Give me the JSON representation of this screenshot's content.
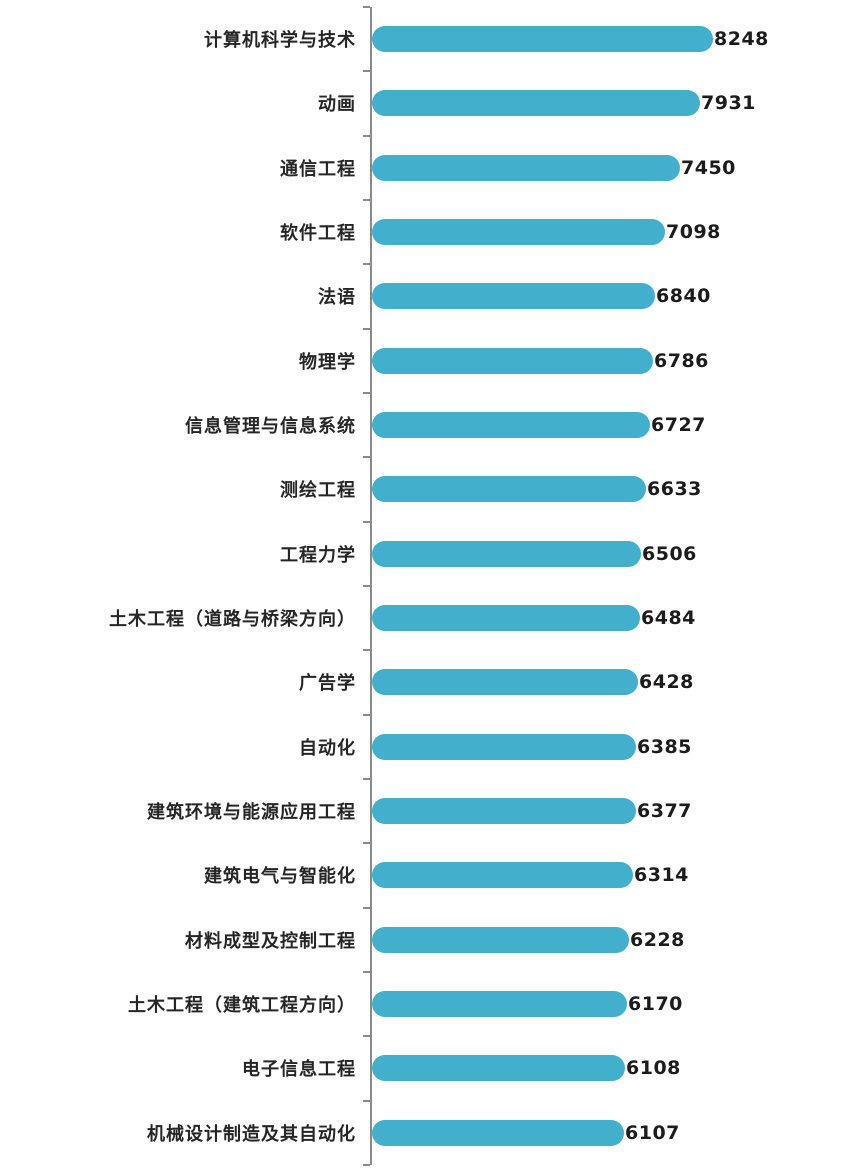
{
  "chart_data": {
    "type": "bar",
    "orientation": "horizontal",
    "title": "",
    "xlabel": "",
    "ylabel": "",
    "xlim": [
      0,
      8500
    ],
    "grid": false,
    "legend": false,
    "bar_color": "#42b0cd",
    "axis_color": "#8a8a8a",
    "category_label_color": "#262626",
    "value_label_color": "#1c1c1c",
    "categories": [
      "计算机科学与技术",
      "动画",
      "通信工程",
      "软件工程",
      "法语",
      "物理学",
      "信息管理与信息系统",
      "测绘工程",
      "工程力学",
      "土木工程（道路与桥梁方向）",
      "广告学",
      "自动化",
      "建筑环境与能源应用工程",
      "建筑电气与智能化",
      "材料成型及控制工程",
      "土木工程（建筑工程方向）",
      "电子信息工程",
      "机械设计制造及其自动化"
    ],
    "values": [
      8248,
      7931,
      7450,
      7098,
      6840,
      6786,
      6727,
      6633,
      6506,
      6484,
      6428,
      6385,
      6377,
      6314,
      6228,
      6170,
      6108,
      6107
    ]
  }
}
